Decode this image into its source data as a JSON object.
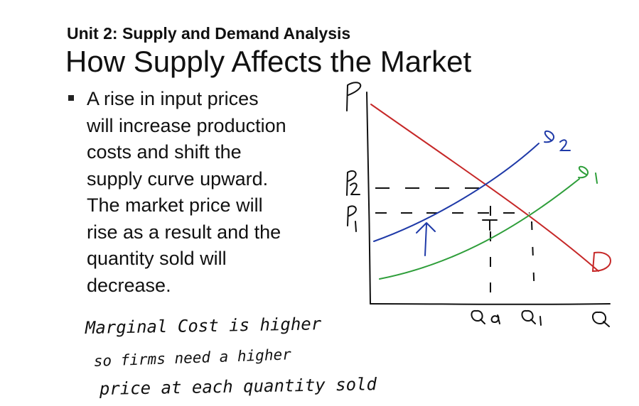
{
  "header": {
    "unit_title": "Unit 2: Supply and Demand Analysis",
    "slide_title": "How Supply Affects the Market"
  },
  "bullet": {
    "lines": [
      "A rise in input prices",
      "will increase production",
      "costs and shift the",
      "supply curve upward.",
      "The market price will",
      "rise as a result and the",
      "quantity sold will",
      "decrease."
    ]
  },
  "graph": {
    "axis_labels": {
      "price": "P",
      "quantity": "Q"
    },
    "price_labels": {
      "p2": "P2",
      "p1": "P1"
    },
    "quantity_labels": {
      "q2": "Q2",
      "q1": "Q1"
    },
    "curve_labels": {
      "s2": "S2",
      "s1": "S1",
      "demand": "D"
    },
    "colors": {
      "demand": "#c62828",
      "supply_original": "#2e9e3a",
      "supply_shifted": "#1f3aa8",
      "ink": "#111111"
    }
  },
  "handwritten_note": {
    "lines": [
      "Marginal Cost is higher",
      "so firms need a higher",
      "price at each quantity sold"
    ]
  }
}
